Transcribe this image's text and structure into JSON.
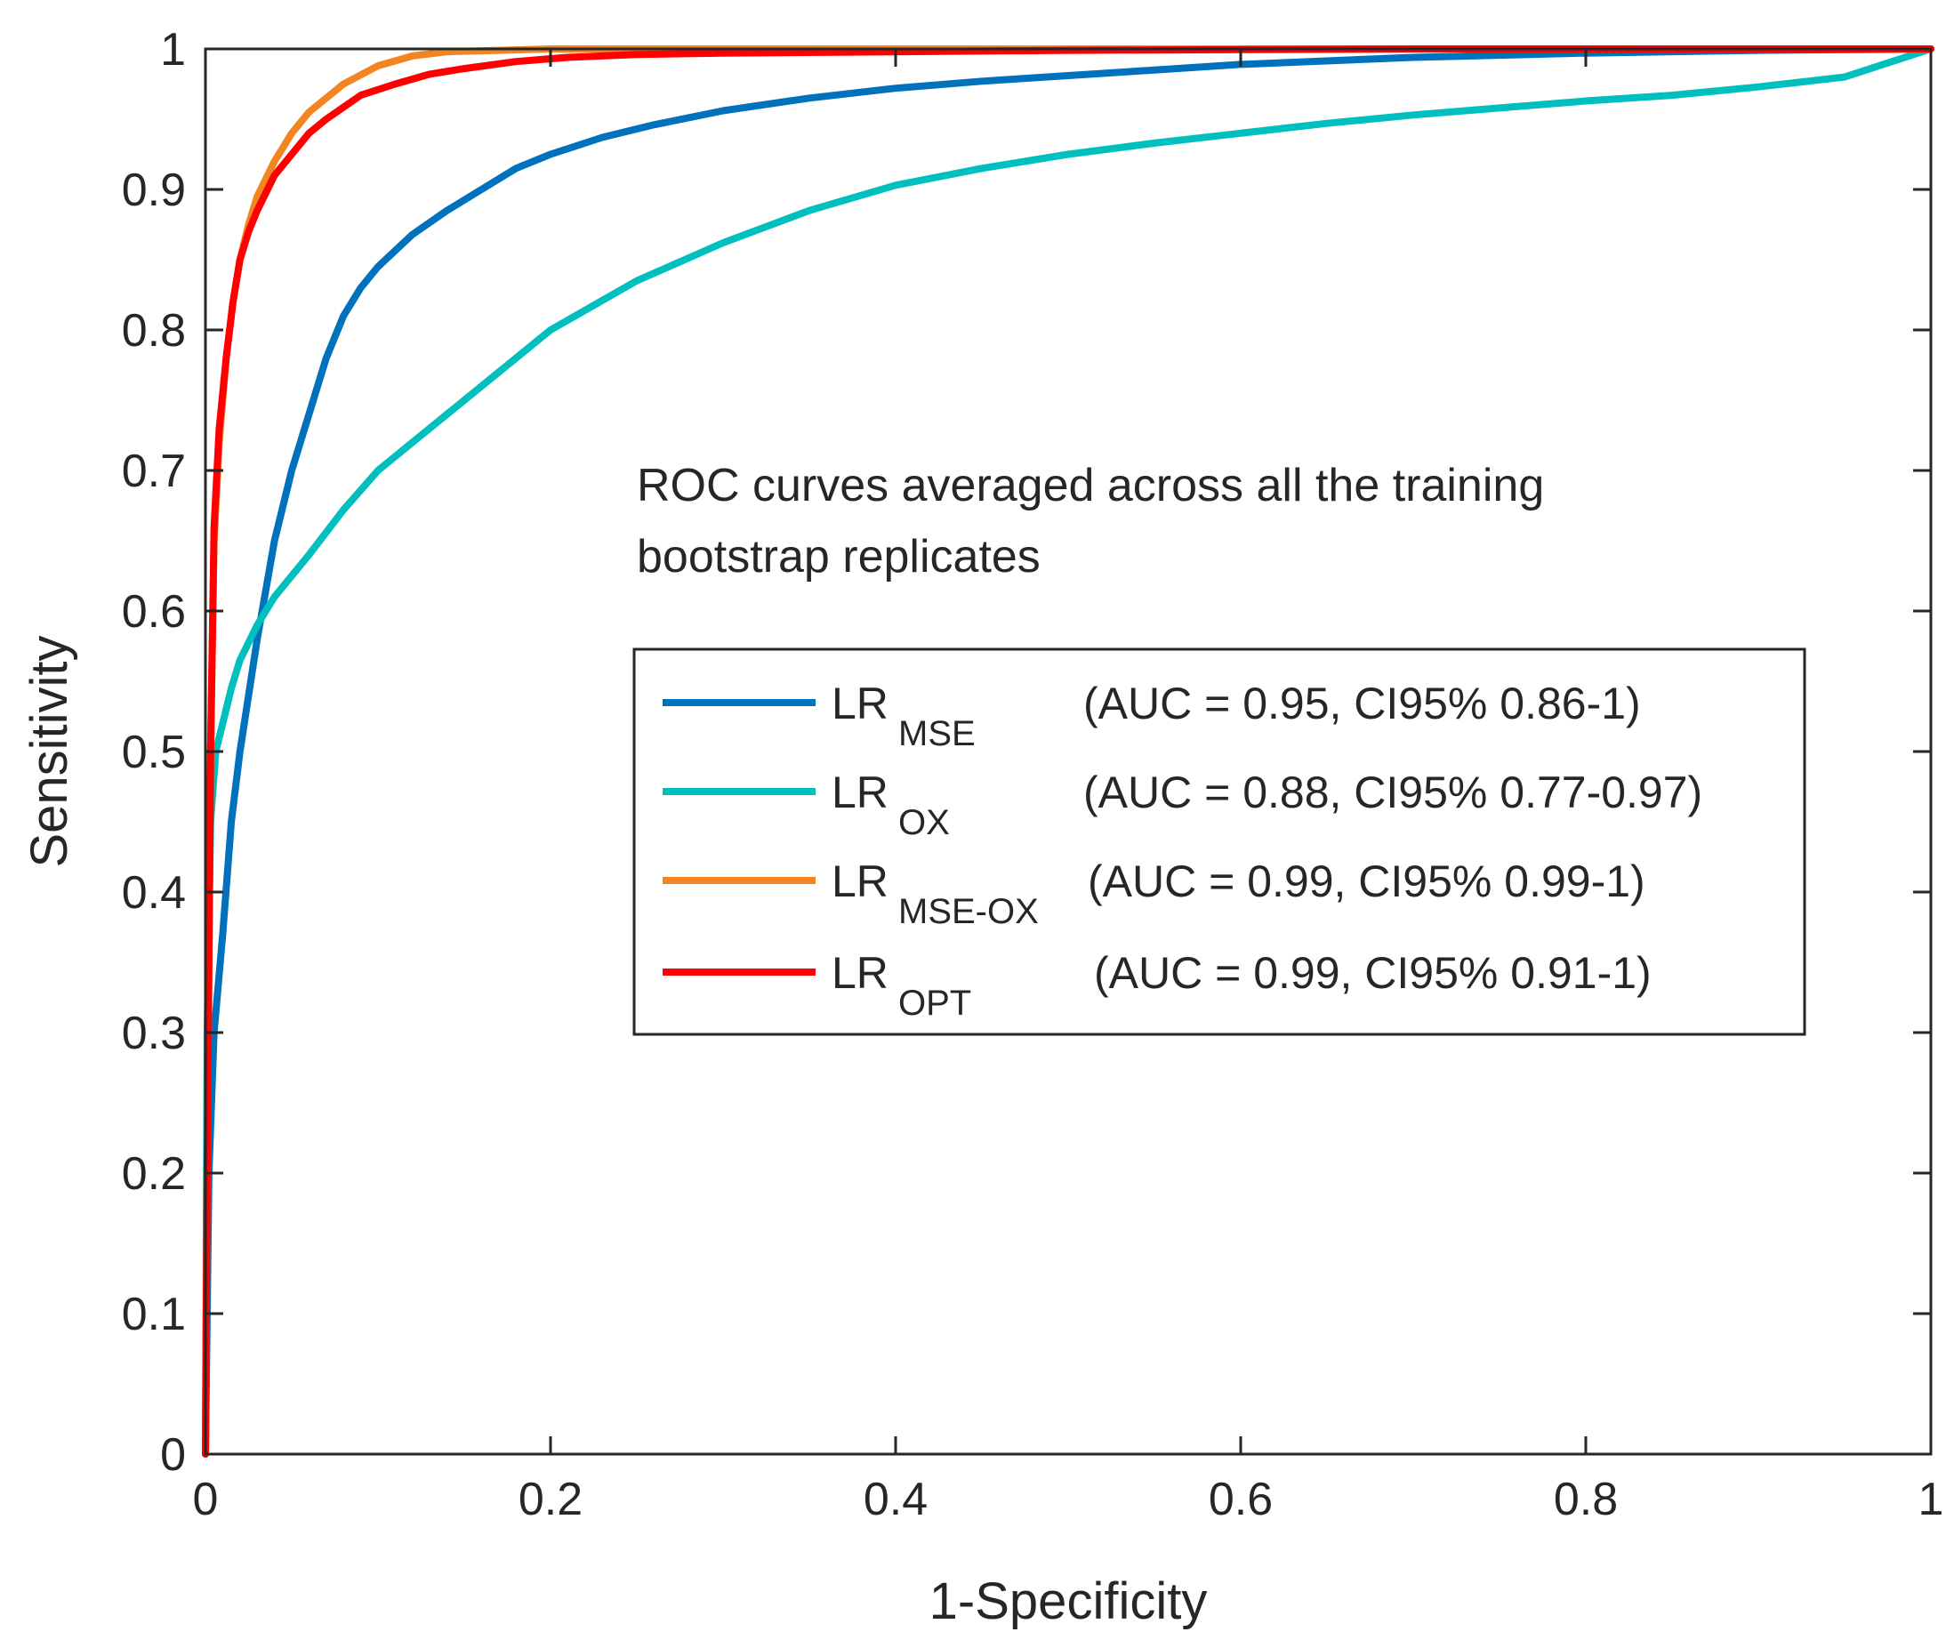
{
  "chart_data": {
    "type": "line",
    "title": "",
    "xlabel": "1-Specificity",
    "ylabel": "Sensitivity",
    "xlim": [
      0,
      1
    ],
    "ylim": [
      0,
      1
    ],
    "x_ticks": [
      0,
      0.2,
      0.4,
      0.6,
      0.8,
      1
    ],
    "x_tick_labels": [
      "0",
      "0.2",
      "0.4",
      "0.6",
      "0.8",
      "1"
    ],
    "y_ticks": [
      0,
      0.1,
      0.2,
      0.3,
      0.4,
      0.5,
      0.6,
      0.7,
      0.8,
      0.9,
      1
    ],
    "y_tick_labels": [
      "0",
      "0.1",
      "0.2",
      "0.3",
      "0.4",
      "0.5",
      "0.6",
      "0.7",
      "0.8",
      "0.9",
      "1"
    ],
    "grid": false,
    "legend_position": "center-right",
    "annotation": {
      "line1": "ROC curves averaged across all the training",
      "line2": "bootstrap replicates"
    },
    "series": [
      {
        "name": "LR",
        "subscript": "MSE",
        "stats": "(AUC = 0.95, CI95% 0.86-1)",
        "color": "#0072BD",
        "x": [
          0,
          0.002,
          0.005,
          0.01,
          0.015,
          0.02,
          0.03,
          0.04,
          0.05,
          0.06,
          0.07,
          0.08,
          0.09,
          0.1,
          0.12,
          0.14,
          0.16,
          0.18,
          0.2,
          0.23,
          0.26,
          0.3,
          0.35,
          0.4,
          0.45,
          0.5,
          0.55,
          0.6,
          0.7,
          0.8,
          0.9,
          1.0
        ],
        "y": [
          0,
          0.2,
          0.3,
          0.37,
          0.45,
          0.5,
          0.58,
          0.65,
          0.7,
          0.74,
          0.78,
          0.81,
          0.83,
          0.845,
          0.868,
          0.885,
          0.9,
          0.915,
          0.925,
          0.937,
          0.946,
          0.956,
          0.965,
          0.972,
          0.977,
          0.981,
          0.985,
          0.989,
          0.994,
          0.997,
          0.999,
          1.0
        ]
      },
      {
        "name": "LR",
        "subscript": "OX",
        "stats": "(AUC = 0.88, CI95% 0.77-0.97)",
        "color": "#00BFBF",
        "x": [
          0,
          0.001,
          0.003,
          0.006,
          0.01,
          0.015,
          0.02,
          0.03,
          0.04,
          0.06,
          0.08,
          0.1,
          0.12,
          0.15,
          0.18,
          0.2,
          0.25,
          0.3,
          0.35,
          0.4,
          0.45,
          0.5,
          0.55,
          0.6,
          0.65,
          0.7,
          0.75,
          0.8,
          0.85,
          0.9,
          0.95,
          1.0
        ],
        "y": [
          0,
          0.3,
          0.45,
          0.5,
          0.52,
          0.545,
          0.565,
          0.59,
          0.61,
          0.64,
          0.672,
          0.7,
          0.72,
          0.75,
          0.78,
          0.8,
          0.835,
          0.862,
          0.885,
          0.903,
          0.915,
          0.925,
          0.933,
          0.94,
          0.947,
          0.953,
          0.958,
          0.963,
          0.967,
          0.973,
          0.98,
          1.0
        ]
      },
      {
        "name": "LR",
        "subscript": "MSE-OX",
        "stats": "(AUC = 0.99, CI95% 0.99-1)",
        "color": "#F28522",
        "x": [
          0,
          0.001,
          0.003,
          0.005,
          0.008,
          0.012,
          0.016,
          0.02,
          0.025,
          0.03,
          0.04,
          0.05,
          0.06,
          0.07,
          0.08,
          0.1,
          0.12,
          0.14,
          0.17,
          0.2,
          0.3,
          0.5,
          0.7,
          1.0
        ],
        "y": [
          0,
          0.2,
          0.5,
          0.65,
          0.72,
          0.78,
          0.82,
          0.85,
          0.875,
          0.895,
          0.92,
          0.94,
          0.955,
          0.965,
          0.975,
          0.988,
          0.995,
          0.998,
          0.999,
          1.0,
          1.0,
          1.0,
          1.0,
          1.0
        ]
      },
      {
        "name": "LR",
        "subscript": "OPT",
        "stats": "(AUC = 0.99, CI95% 0.91-1)",
        "color": "#FF0000",
        "x": [
          0,
          0.001,
          0.003,
          0.005,
          0.008,
          0.012,
          0.016,
          0.02,
          0.025,
          0.03,
          0.04,
          0.05,
          0.06,
          0.07,
          0.09,
          0.11,
          0.13,
          0.15,
          0.18,
          0.21,
          0.25,
          0.3,
          0.5,
          0.7,
          1.0
        ],
        "y": [
          0,
          0.2,
          0.5,
          0.66,
          0.73,
          0.78,
          0.82,
          0.85,
          0.87,
          0.885,
          0.91,
          0.925,
          0.94,
          0.95,
          0.967,
          0.975,
          0.982,
          0.986,
          0.991,
          0.994,
          0.996,
          0.997,
          0.999,
          1.0,
          1.0
        ]
      }
    ]
  }
}
